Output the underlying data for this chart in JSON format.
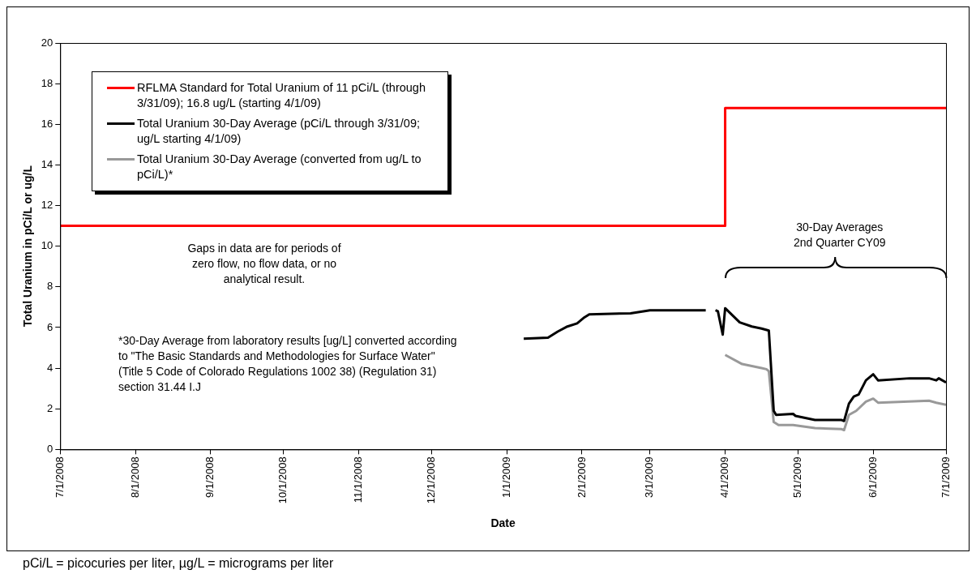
{
  "chart_data": {
    "type": "line",
    "xlabel": "Date",
    "ylabel": "Total Uranium in pCi/L or ug/L",
    "xlim": [
      "2008-07-01",
      "2009-07-01"
    ],
    "xticks": [
      {
        "value": "2008-07-01",
        "label": "7/1/2008"
      },
      {
        "value": "2008-08-01",
        "label": "8/1/2008"
      },
      {
        "value": "2008-09-01",
        "label": "9/1/2008"
      },
      {
        "value": "2008-10-01",
        "label": "10/1/2008"
      },
      {
        "value": "2008-11-01",
        "label": "11/1/2008"
      },
      {
        "value": "2008-12-01",
        "label": "12/1/2008"
      },
      {
        "value": "2009-01-01",
        "label": "1/1/2009"
      },
      {
        "value": "2009-02-01",
        "label": "2/1/2009"
      },
      {
        "value": "2009-03-01",
        "label": "3/1/2009"
      },
      {
        "value": "2009-04-01",
        "label": "4/1/2009"
      },
      {
        "value": "2009-05-01",
        "label": "5/1/2009"
      },
      {
        "value": "2009-06-01",
        "label": "6/1/2009"
      },
      {
        "value": "2009-07-01",
        "label": "7/1/2009"
      }
    ],
    "ylim": [
      0,
      20
    ],
    "yticks": [
      0,
      2,
      4,
      6,
      8,
      10,
      12,
      14,
      16,
      18,
      20
    ],
    "grid": false,
    "legend": "top left",
    "marker": "none",
    "line_style": "solid",
    "series": [
      {
        "name": "RFLMA Standard for Total Uranium of 11 pCi/L (through 3/31/09); 16.8 ug/L (starting 4/1/09)",
        "type": "step",
        "color": "#ff0000",
        "x": [
          "2008-07-01",
          "2009-04-01",
          "2009-07-01"
        ],
        "values": [
          11,
          16.8,
          16.8
        ]
      },
      {
        "name": "Total Uranium 30-Day Average (pCi/L through 3/31/09; ug/L starting 4/1/09)",
        "color": "#000000",
        "x": [
          "2009-01-08",
          "2009-01-18",
          "2009-01-22",
          "2009-01-26",
          "2009-01-30",
          "2009-02-02",
          "2009-02-04",
          "2009-02-21",
          "2009-03-01",
          "2009-03-24",
          "2009-03-26",
          "2009-03-28",
          "2009-03-29",
          "2009-03-31",
          "2009-04-01",
          "2009-04-07",
          "2009-04-12",
          "2009-04-16",
          "2009-04-19",
          "2009-04-21",
          "2009-04-22",
          "2009-04-29",
          "2009-04-30",
          "2009-05-08",
          "2009-05-19",
          "2009-05-20",
          "2009-05-22",
          "2009-05-24",
          "2009-05-26",
          "2009-05-29",
          "2009-05-30",
          "2009-06-01",
          "2009-06-03",
          "2009-06-16",
          "2009-06-24",
          "2009-06-27",
          "2009-06-28",
          "2009-07-01"
        ],
        "values": [
          5.45,
          5.5,
          5.8,
          6.05,
          6.2,
          6.5,
          6.65,
          6.7,
          6.85,
          6.85,
          null,
          6.85,
          6.8,
          5.65,
          6.95,
          6.25,
          6.05,
          5.95,
          5.85,
          1.9,
          1.7,
          1.75,
          1.65,
          1.45,
          1.45,
          1.4,
          2.25,
          2.6,
          2.7,
          3.4,
          3.5,
          3.7,
          3.4,
          3.5,
          3.5,
          3.4,
          3.5,
          3.3
        ]
      },
      {
        "name": "Total Uranium 30-Day Average (converted from ug/L to pCi/L)*",
        "color": "#999999",
        "x": [
          "2009-04-01",
          "2009-04-08",
          "2009-04-16",
          "2009-04-18",
          "2009-04-19",
          "2009-04-21",
          "2009-04-23",
          "2009-04-29",
          "2009-05-08",
          "2009-05-19",
          "2009-05-20",
          "2009-05-22",
          "2009-05-25",
          "2009-05-29",
          "2009-06-01",
          "2009-06-03",
          "2009-06-24",
          "2009-06-27",
          "2009-07-01"
        ],
        "values": [
          4.65,
          4.2,
          4.0,
          3.95,
          3.85,
          1.35,
          1.2,
          1.2,
          1.05,
          1.0,
          0.95,
          1.7,
          1.9,
          2.35,
          2.5,
          2.3,
          2.4,
          2.3,
          2.2
        ]
      }
    ],
    "annotations": [
      "Gaps in data are for periods of zero flow, no flow data, or no analytical result.",
      "*30-Day Average from laboratory results [ug/L] converted according to \"The Basic Standards and Methodologies for Surface Water\" (Title 5 Code of Colorado Regulations 1002 38) (Regulation 31) section 31.44 I.J",
      "30-Day Averages 2nd Quarter CY09",
      "pCi/L = picocuries per liter, µg/L = micrograms per liter"
    ]
  }
}
